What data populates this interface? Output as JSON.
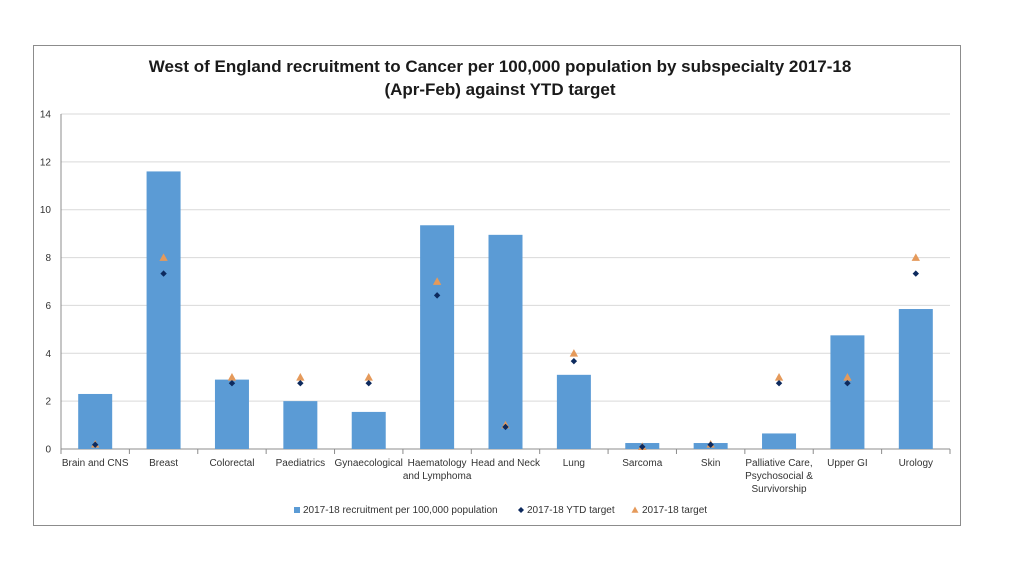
{
  "chart_data": {
    "type": "bar",
    "title_line1": "West of England recruitment to Cancer per 100,000 population by subspecialty 2017-18",
    "title_line2": "(Apr-Feb) against YTD target",
    "ylim": [
      0,
      14
    ],
    "yticks": [
      "0",
      "2",
      "4",
      "6",
      "8",
      "10",
      "12",
      "14"
    ],
    "ytick_values": [
      0,
      2,
      4,
      6,
      8,
      10,
      12,
      14
    ],
    "grid": true,
    "legend_position": "bottom",
    "categories": [
      [
        "Brain and  CNS"
      ],
      [
        "Breast"
      ],
      [
        "Colorectal"
      ],
      [
        "Paediatrics"
      ],
      [
        "Gynaecological"
      ],
      [
        "Haematology",
        "and Lymphoma"
      ],
      [
        "Head and Neck"
      ],
      [
        "Lung"
      ],
      [
        "Sarcoma"
      ],
      [
        "Skin"
      ],
      [
        "Palliative Care,",
        "Psychosocial &",
        "Survivorship"
      ],
      [
        "Upper GI"
      ],
      [
        "Urology"
      ]
    ],
    "series": [
      {
        "name": "2017-18 recruitment per 100,000 population",
        "kind": "bar",
        "color": "#5b9bd5",
        "values": [
          2.3,
          11.6,
          2.9,
          2.0,
          1.55,
          9.35,
          8.95,
          3.1,
          0.25,
          0.25,
          0.65,
          4.75,
          5.85
        ]
      },
      {
        "name": "2017-18 YTD target",
        "kind": "diamond",
        "color": "#0d2a5e",
        "values": [
          0.18,
          7.33,
          2.75,
          2.75,
          2.75,
          6.42,
          0.92,
          3.67,
          0.09,
          0.18,
          2.75,
          2.75,
          7.33
        ]
      },
      {
        "name": "2017-18 target",
        "kind": "triangle",
        "color": "#e59a5b",
        "values": [
          0.2,
          8.0,
          3.0,
          3.0,
          3.0,
          7.0,
          1.0,
          4.0,
          0.1,
          0.2,
          3.0,
          3.0,
          8.0
        ]
      }
    ]
  }
}
